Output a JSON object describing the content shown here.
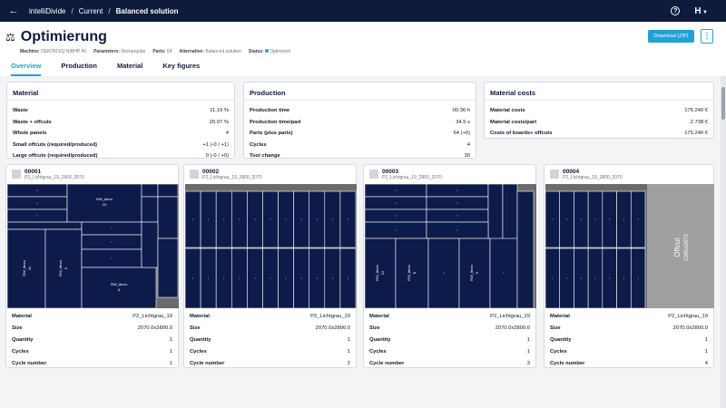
{
  "breadcrumb": [
    "intelliDivide",
    "Current",
    "Balanced solution"
  ],
  "header": {
    "title": "Optimierung",
    "meta": [
      {
        "label": "Machine:",
        "value": "CENTATEQ N/BHP 40"
      },
      {
        "label": "Parameters:",
        "value": "Rectangular"
      },
      {
        "label": "Parts:",
        "value": "64"
      },
      {
        "label": "Alternative:",
        "value": "Balanced solution"
      },
      {
        "label": "Status:",
        "value": "Optimized"
      }
    ],
    "download_label": "Download (ZIP)",
    "kebab_label": "⋮"
  },
  "tabs": [
    "Overview",
    "Production",
    "Material",
    "Key figures"
  ],
  "active_tab": "Overview",
  "colors": {
    "nav": "#0f1b3d",
    "accent": "#1fa2d6",
    "part": "#0d1b4b",
    "board": "#6b6b6b",
    "offcut": "#a0a0a0"
  },
  "cards": {
    "material": {
      "title": "Material",
      "rows": [
        {
          "k": "Waste",
          "v": "11.19 %"
        },
        {
          "k": "Waste + offcuts",
          "v": "20.97 %"
        },
        {
          "k": "Whole panels",
          "v": "4"
        },
        {
          "k": "Small offcuts (required/produced)",
          "v": "+1 (-0 / +1)"
        },
        {
          "k": "Large offcuts (required/produced)",
          "v": "0 (-0 / +0)"
        }
      ]
    },
    "production": {
      "title": "Production",
      "rows": [
        {
          "k": "Production time",
          "v": "00:36 h"
        },
        {
          "k": "Production time/part",
          "v": "34.5 s"
        },
        {
          "k": "Parts (plus parts)",
          "v": "64 (+0)"
        },
        {
          "k": "Cycles",
          "v": "4"
        },
        {
          "k": "Tool change",
          "v": "30"
        }
      ]
    },
    "costs": {
      "title": "Material costs",
      "rows": [
        {
          "k": "Material costs",
          "v": "175.240 €"
        },
        {
          "k": "Material costs/part",
          "v": "2.738 €"
        },
        {
          "k": "Costs of boards+ offcuts",
          "v": "175.240 €"
        }
      ]
    }
  },
  "panels": [
    {
      "id": "00001",
      "sub": "P2_Lichtgrau_19_2800_2070",
      "labels": [
        "Material",
        "Size",
        "Quantity",
        "Cycles",
        "Cycle number"
      ],
      "values": [
        "P2_Lichtgrau_19",
        "2070.0x2800.0",
        "1",
        "1",
        "1"
      ]
    },
    {
      "id": "00002",
      "sub": "P2_Lichtgrau_19_2800_2070",
      "labels": [
        "Material",
        "Size",
        "Quantity",
        "Cycles",
        "Cycle number"
      ],
      "values": [
        "P2_Lichtgrau_19",
        "2070.0x2800.0",
        "1",
        "1",
        "2"
      ]
    },
    {
      "id": "00003",
      "sub": "P2_Lichtgrau_19_2800_2070",
      "labels": [
        "Material",
        "Size",
        "Quantity",
        "Cycles",
        "Cycle number"
      ],
      "values": [
        "P2_Lichtgrau_19",
        "2070.0x2800.0",
        "1",
        "1",
        "3"
      ]
    },
    {
      "id": "00004",
      "sub": "P2_Lichtgrau_19_2800_2070",
      "labels": [
        "Material",
        "Size",
        "Quantity",
        "Cycles",
        "Cycle number"
      ],
      "values": [
        "P2_Lichtgrau_19",
        "2070.0x2800.0",
        "1",
        "1",
        "4"
      ]
    }
  ],
  "board_text": {
    "part_label_a": "RW_8mm",
    "part_label_b": "10",
    "part_label_c": "11",
    "part_label_d": "9",
    "part_label_e": "6",
    "part_label_f": "12",
    "part_label_g": "8",
    "part_label_h": "5",
    "offcut_label": "Offcut",
    "offcut_size": "1095x2070"
  }
}
